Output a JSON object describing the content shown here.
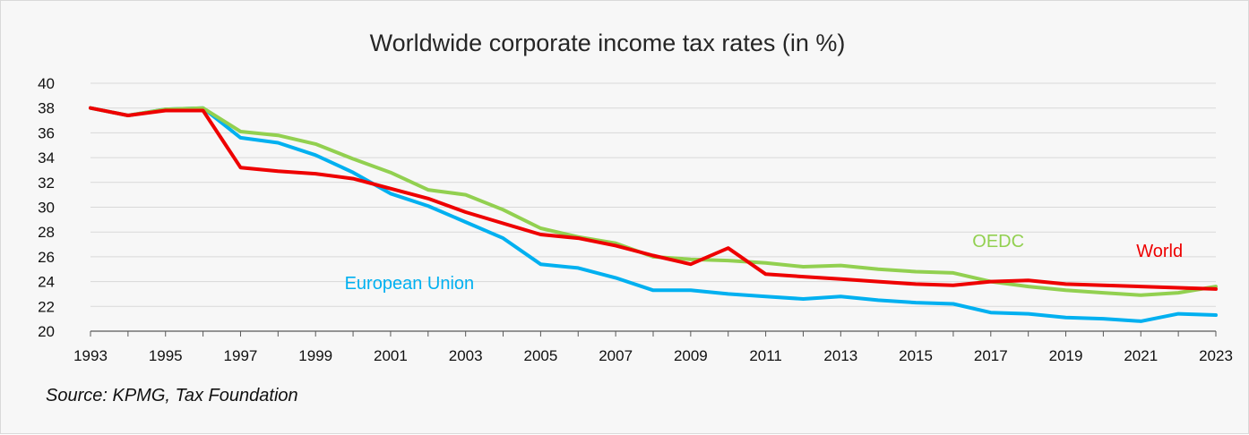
{
  "chart_data": {
    "type": "line",
    "title": "Worldwide corporate income tax rates (in %)",
    "xlabel": "",
    "ylabel": "",
    "x": [
      1993,
      1994,
      1995,
      1996,
      1997,
      1998,
      1999,
      2000,
      2001,
      2002,
      2003,
      2004,
      2005,
      2006,
      2007,
      2008,
      2009,
      2010,
      2011,
      2012,
      2013,
      2014,
      2015,
      2016,
      2017,
      2018,
      2019,
      2020,
      2021,
      2022,
      2023
    ],
    "x_tick_labels": [
      "1993",
      "1995",
      "1997",
      "1999",
      "2001",
      "2003",
      "2005",
      "2007",
      "2009",
      "2011",
      "2013",
      "2015",
      "2017",
      "2019",
      "2021",
      "2023"
    ],
    "y_tick_labels": [
      "20",
      "22",
      "24",
      "26",
      "28",
      "30",
      "32",
      "34",
      "36",
      "38",
      "40"
    ],
    "ylim": [
      20,
      40
    ],
    "xlim": [
      1993,
      2023
    ],
    "grid": true,
    "series": [
      {
        "name": "European Union",
        "color": "#00b0f0",
        "label_position": "below-middle",
        "values": [
          38.0,
          37.4,
          37.9,
          38.0,
          35.6,
          35.2,
          34.2,
          32.8,
          31.1,
          30.1,
          28.8,
          27.5,
          25.4,
          25.1,
          24.3,
          23.3,
          23.3,
          23.0,
          22.8,
          22.6,
          22.8,
          22.5,
          22.3,
          22.2,
          21.5,
          21.4,
          21.1,
          21.0,
          20.8,
          21.4,
          21.3
        ]
      },
      {
        "name": "OEDC",
        "color": "#92d050",
        "label_position": "upper-right",
        "values": [
          38.0,
          37.4,
          37.9,
          38.0,
          36.1,
          35.8,
          35.1,
          33.9,
          32.8,
          31.4,
          31.0,
          29.8,
          28.3,
          27.6,
          27.1,
          26.0,
          25.8,
          25.7,
          25.5,
          25.2,
          25.3,
          25.0,
          24.8,
          24.7,
          24.0,
          23.6,
          23.3,
          23.1,
          22.9,
          23.1,
          23.6
        ]
      },
      {
        "name": "World",
        "color": "#ee0000",
        "label_position": "upper-right",
        "values": [
          38.0,
          37.4,
          37.8,
          37.8,
          33.2,
          32.9,
          32.7,
          32.3,
          31.5,
          30.7,
          29.6,
          28.7,
          27.8,
          27.5,
          26.9,
          26.1,
          25.4,
          26.7,
          24.6,
          24.4,
          24.2,
          24.0,
          23.8,
          23.7,
          24.0,
          24.1,
          23.8,
          23.7,
          23.6,
          23.5,
          23.4
        ]
      }
    ]
  },
  "source_note": "Source: KPMG, Tax Foundation"
}
